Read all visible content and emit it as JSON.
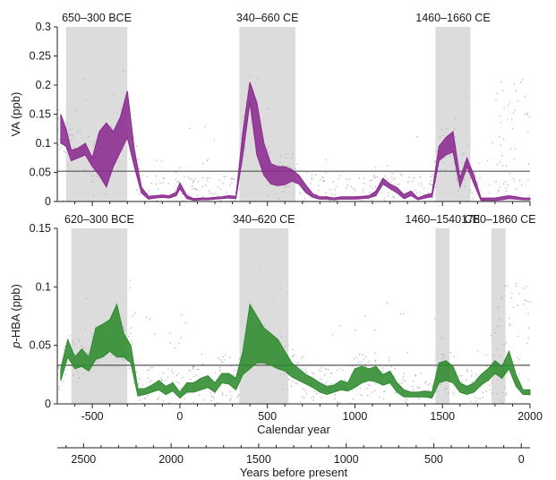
{
  "chart_data": [
    {
      "type": "area",
      "panel": "top",
      "ylabel": "VA (ppb)",
      "xlim": [
        -700,
        2000
      ],
      "ylim": [
        0,
        0.3
      ],
      "yticks": [
        "0",
        "0.05",
        "0.1",
        "0.15",
        "0.2",
        "0.25",
        "0.3"
      ],
      "threshold": 0.052,
      "shaded_periods": [
        {
          "label": "650–300 BCE",
          "start": -650,
          "end": -300
        },
        {
          "label": "340–660 CE",
          "start": 340,
          "end": 660
        },
        {
          "label": "1460–1660 CE",
          "start": 1460,
          "end": 1660
        }
      ],
      "series": [
        {
          "color": "#8b2a8f",
          "x": [
            -680,
            -650,
            -620,
            -580,
            -540,
            -500,
            -460,
            -420,
            -380,
            -340,
            -300,
            -260,
            -220,
            -180,
            -140,
            -100,
            -60,
            -20,
            0,
            40,
            80,
            120,
            160,
            200,
            240,
            280,
            320,
            360,
            400,
            440,
            480,
            520,
            560,
            600,
            640,
            680,
            720,
            760,
            800,
            840,
            880,
            920,
            960,
            1000,
            1040,
            1080,
            1120,
            1160,
            1200,
            1240,
            1280,
            1320,
            1360,
            1400,
            1440,
            1480,
            1520,
            1560,
            1600,
            1640,
            1680,
            1720,
            1760,
            1800,
            1840,
            1880,
            1920,
            1960,
            2000
          ],
          "lower": [
            0.1,
            0.095,
            0.07,
            0.075,
            0.08,
            0.06,
            0.045,
            0.025,
            0.06,
            0.085,
            0.11,
            0.06,
            0.015,
            0.004,
            0.006,
            0.007,
            0.006,
            0.01,
            0.022,
            0.005,
            0.002,
            0.003,
            0.003,
            0.004,
            0.005,
            0.006,
            0.005,
            0.08,
            0.17,
            0.08,
            0.045,
            0.03,
            0.027,
            0.029,
            0.035,
            0.03,
            0.015,
            0.007,
            0.004,
            0.004,
            0.003,
            0.004,
            0.004,
            0.004,
            0.005,
            0.006,
            0.01,
            0.03,
            0.022,
            0.015,
            0.005,
            0.01,
            0.003,
            0.006,
            0.008,
            0.07,
            0.08,
            0.085,
            0.025,
            0.06,
            0.03,
            0.002,
            0.002,
            0.002,
            0.003,
            0.005,
            0.004,
            0.003,
            0.003
          ],
          "upper": [
            0.15,
            0.125,
            0.088,
            0.092,
            0.1,
            0.075,
            0.12,
            0.135,
            0.12,
            0.145,
            0.19,
            0.09,
            0.025,
            0.009,
            0.01,
            0.011,
            0.01,
            0.016,
            0.032,
            0.01,
            0.005,
            0.006,
            0.006,
            0.007,
            0.008,
            0.01,
            0.009,
            0.12,
            0.205,
            0.17,
            0.1,
            0.065,
            0.06,
            0.06,
            0.055,
            0.045,
            0.028,
            0.013,
            0.008,
            0.008,
            0.006,
            0.008,
            0.008,
            0.008,
            0.009,
            0.01,
            0.018,
            0.04,
            0.03,
            0.024,
            0.012,
            0.018,
            0.006,
            0.011,
            0.014,
            0.095,
            0.11,
            0.12,
            0.04,
            0.075,
            0.045,
            0.006,
            0.006,
            0.006,
            0.008,
            0.01,
            0.008,
            0.006,
            0.006
          ]
        }
      ]
    },
    {
      "type": "area",
      "panel": "bottom",
      "ylabel_italic": "p",
      "ylabel": "-HBA (ppb)",
      "xlabel": "Calendar year",
      "xlim": [
        -700,
        2000
      ],
      "ylim": [
        0,
        0.15
      ],
      "yticks": [
        "0",
        "0.05",
        "0.1",
        "0.15"
      ],
      "xticks": [
        "-500",
        "0",
        "500",
        "1000",
        "1500",
        "2000"
      ],
      "threshold": 0.033,
      "shaded_periods": [
        {
          "label": "620–300 BCE",
          "start": -620,
          "end": -300
        },
        {
          "label": "340–620 CE",
          "start": 340,
          "end": 620
        },
        {
          "label": "1460–1540 CE",
          "start": 1460,
          "end": 1540
        },
        {
          "label": "1780–1860 CE",
          "start": 1780,
          "end": 1860
        }
      ],
      "series": [
        {
          "color": "#2e8b2e",
          "x": [
            -680,
            -640,
            -600,
            -560,
            -520,
            -480,
            -440,
            -400,
            -360,
            -320,
            -280,
            -240,
            -200,
            -160,
            -120,
            -80,
            -40,
            0,
            40,
            80,
            120,
            160,
            200,
            240,
            280,
            320,
            360,
            400,
            440,
            480,
            520,
            560,
            600,
            640,
            680,
            720,
            760,
            800,
            840,
            880,
            920,
            960,
            1000,
            1040,
            1080,
            1120,
            1160,
            1200,
            1240,
            1280,
            1320,
            1360,
            1400,
            1440,
            1480,
            1520,
            1560,
            1600,
            1640,
            1680,
            1720,
            1760,
            1800,
            1840,
            1880,
            1920,
            1960,
            2000
          ],
          "lower": [
            0.02,
            0.04,
            0.03,
            0.032,
            0.028,
            0.038,
            0.04,
            0.045,
            0.04,
            0.04,
            0.035,
            0.007,
            0.008,
            0.01,
            0.012,
            0.008,
            0.011,
            0.005,
            0.01,
            0.01,
            0.012,
            0.014,
            0.01,
            0.018,
            0.017,
            0.012,
            0.025,
            0.03,
            0.035,
            0.035,
            0.033,
            0.03,
            0.028,
            0.023,
            0.02,
            0.017,
            0.014,
            0.01,
            0.008,
            0.01,
            0.012,
            0.011,
            0.014,
            0.018,
            0.02,
            0.019,
            0.016,
            0.018,
            0.01,
            0.006,
            0.006,
            0.006,
            0.006,
            0.005,
            0.018,
            0.02,
            0.018,
            0.01,
            0.008,
            0.01,
            0.016,
            0.02,
            0.026,
            0.022,
            0.03,
            0.015,
            0.008,
            0.008
          ],
          "upper": [
            0.03,
            0.055,
            0.04,
            0.047,
            0.04,
            0.065,
            0.068,
            0.072,
            0.085,
            0.06,
            0.05,
            0.013,
            0.013,
            0.016,
            0.02,
            0.015,
            0.018,
            0.01,
            0.018,
            0.018,
            0.022,
            0.024,
            0.018,
            0.026,
            0.026,
            0.022,
            0.045,
            0.085,
            0.075,
            0.065,
            0.06,
            0.055,
            0.045,
            0.035,
            0.03,
            0.025,
            0.022,
            0.018,
            0.015,
            0.016,
            0.02,
            0.018,
            0.03,
            0.032,
            0.03,
            0.032,
            0.025,
            0.028,
            0.018,
            0.012,
            0.01,
            0.01,
            0.011,
            0.01,
            0.035,
            0.037,
            0.032,
            0.018,
            0.015,
            0.018,
            0.025,
            0.03,
            0.037,
            0.032,
            0.045,
            0.025,
            0.012,
            0.012
          ]
        }
      ]
    }
  ],
  "bp_axis": {
    "xlabel": "Years before present",
    "ticks": [
      "2500",
      "2000",
      "1500",
      "1000",
      "500",
      "0"
    ],
    "tick_values": [
      2500,
      2000,
      1500,
      1000,
      500,
      0
    ]
  },
  "colors": {
    "shade": "#dcdcdc",
    "scatter": "#b0b0b0",
    "threshold": "#555555",
    "va_fill": "#8b2a8f",
    "hba_fill": "#2e8b2e"
  }
}
